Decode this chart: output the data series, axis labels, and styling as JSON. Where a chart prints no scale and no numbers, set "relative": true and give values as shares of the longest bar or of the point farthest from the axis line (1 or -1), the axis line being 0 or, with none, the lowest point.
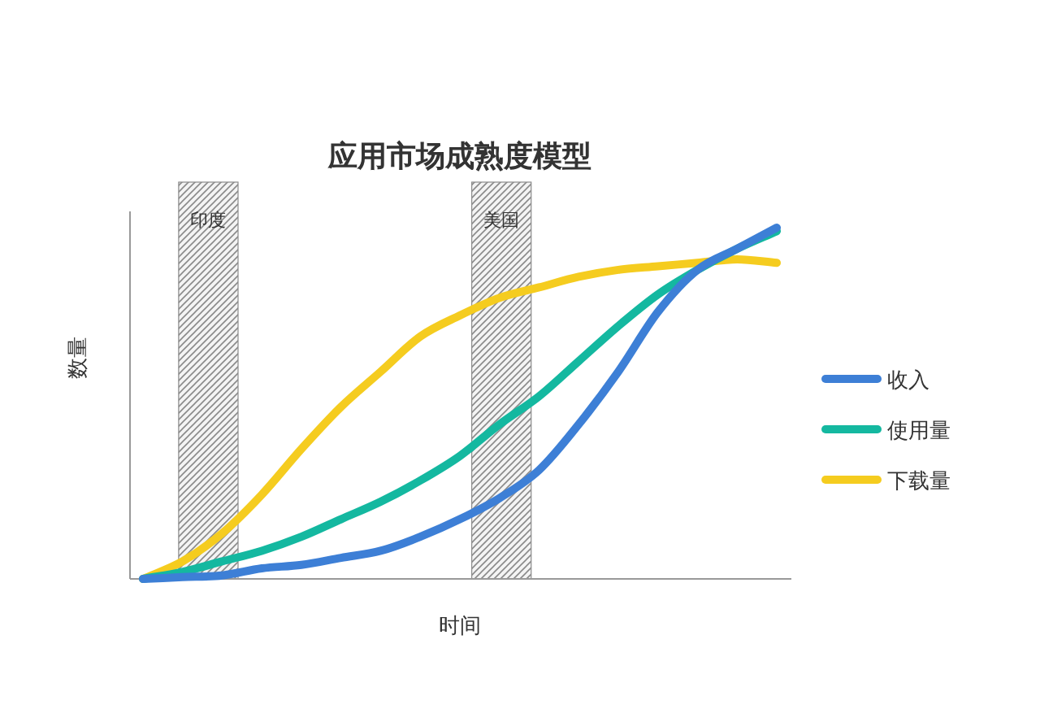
{
  "chart_data": {
    "type": "line",
    "title": "应用市场成熟度模型",
    "xlabel": "时间",
    "ylabel": "数量",
    "relative": true,
    "legend": "right",
    "categories": [
      null,
      null,
      null,
      null,
      null,
      null,
      null,
      null,
      null,
      null,
      null,
      null,
      null,
      null,
      null,
      null,
      null
    ],
    "series": [
      {
        "name": "收入",
        "color": "#3d7fd6",
        "values": [
          0,
          0.005,
          0.01,
          0.03,
          0.04,
          0.06,
          0.08,
          0.12,
          0.17,
          0.23,
          0.31,
          0.44,
          0.59,
          0.76,
          0.88,
          0.94,
          1
        ]
      },
      {
        "name": "使用量",
        "color": "#14b8a0",
        "values": [
          0,
          0.02,
          0.05,
          0.08,
          0.12,
          0.17,
          0.22,
          0.28,
          0.35,
          0.44,
          0.52,
          0.62,
          0.72,
          0.81,
          0.88,
          0.94,
          0.99
        ]
      },
      {
        "name": "下载量",
        "color": "#f5cc1f",
        "values": [
          0,
          0.05,
          0.13,
          0.24,
          0.37,
          0.49,
          0.59,
          0.69,
          0.75,
          0.8,
          0.83,
          0.86,
          0.88,
          0.89,
          0.9,
          0.91,
          0.9
        ]
      }
    ],
    "annotations": [
      "印度",
      "美国"
    ]
  }
}
